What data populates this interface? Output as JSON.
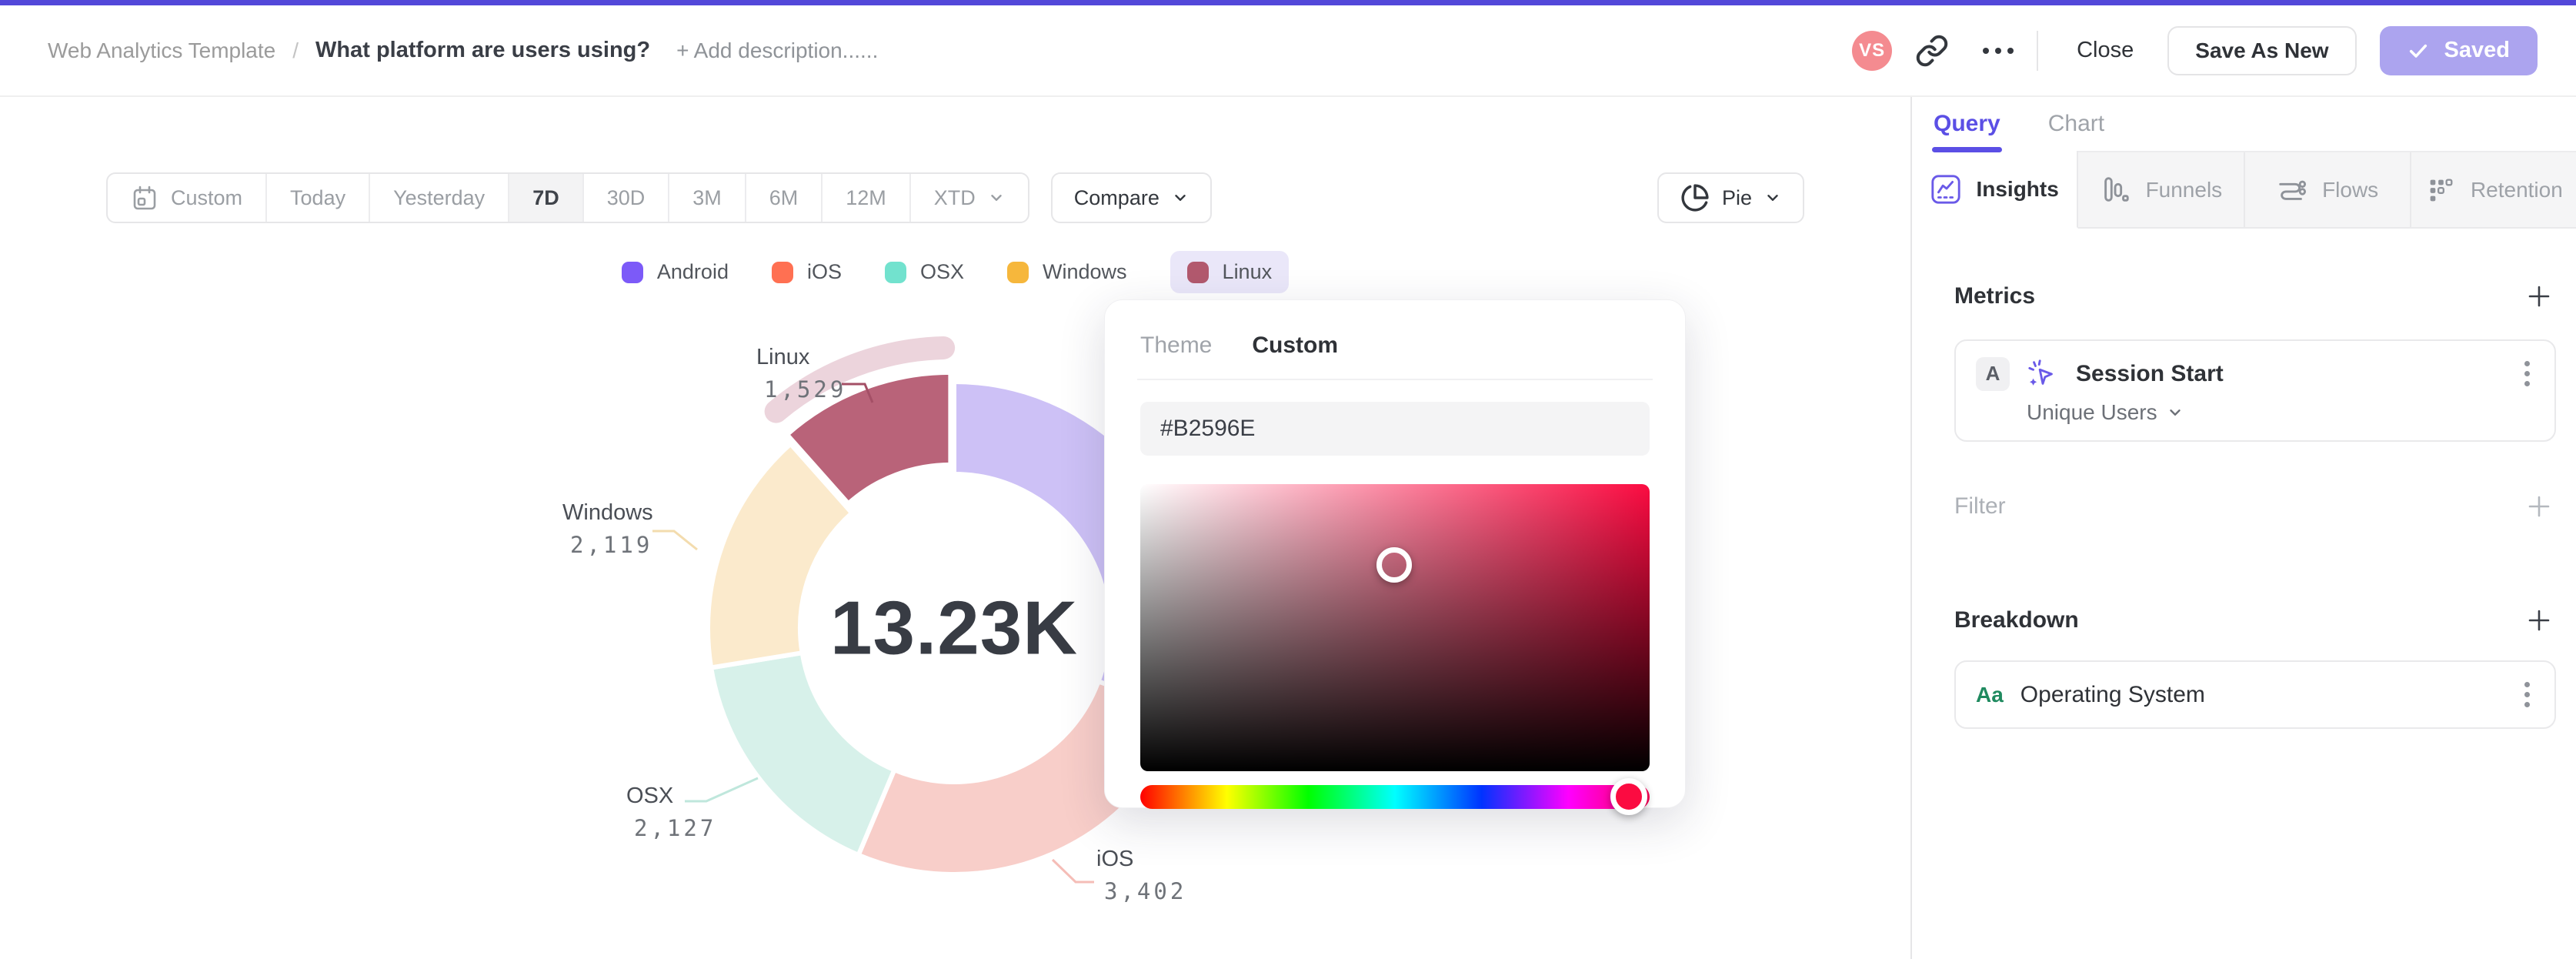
{
  "topbar": {
    "accent_color": "#5348D9"
  },
  "header": {
    "breadcrumb": "Web Analytics Template",
    "breadcrumb_sep": "/",
    "title": "What platform are users using?",
    "add_description": "+ Add description......",
    "avatar_initials": "VS",
    "close_label": "Close",
    "save_as_new_label": "Save As New",
    "saved_label": "Saved",
    "saved_button_color": "#ACA4EF"
  },
  "toolbar": {
    "ranges": [
      "Custom",
      "Today",
      "Yesterday",
      "7D",
      "30D",
      "3M",
      "6M",
      "12M",
      "XTD"
    ],
    "active_range": "7D",
    "compare_label": "Compare",
    "chart_type_label": "Pie"
  },
  "chart_data": {
    "type": "pie",
    "style": "donut",
    "center_total": "13.23K",
    "order_clockwise_from_top": [
      "Android",
      "iOS",
      "OSX",
      "Windows",
      "Linux"
    ],
    "legend_selected": "Linux",
    "series": [
      {
        "name": "Android",
        "value": 4053,
        "legend_color": "#7C5AF8",
        "slice_color": "#CDC1F6",
        "label_visible": false
      },
      {
        "name": "iOS",
        "value": 3402,
        "display_value": "3,402",
        "legend_color": "#FF7052",
        "slice_color": "#F8CEC9",
        "leader_color": "#F5BDB7",
        "label_visible": true
      },
      {
        "name": "OSX",
        "value": 2127,
        "display_value": "2,127",
        "legend_color": "#72E2CE",
        "slice_color": "#D7F1EA",
        "leader_color": "#BFE7DC",
        "label_visible": true
      },
      {
        "name": "Windows",
        "value": 2119,
        "display_value": "2,119",
        "legend_color": "#F6B73C",
        "slice_color": "#FBEACC",
        "leader_color": "#F3DCAE",
        "label_visible": true
      },
      {
        "name": "Linux",
        "value": 1529,
        "display_value": "1,529",
        "legend_color": "#B2596E",
        "slice_color": "#B96379",
        "band_color": "#ECD4DC",
        "leader_color": "#A44F66",
        "label_visible": true,
        "selected": true
      }
    ]
  },
  "color_picker": {
    "tabs": [
      "Theme",
      "Custom"
    ],
    "active_tab": "Custom",
    "hex_value": "#B2596E",
    "hue_color": "#FB0B41"
  },
  "sidebar": {
    "view_tabs": [
      {
        "label": "Query",
        "active": true
      },
      {
        "label": "Chart",
        "active": false
      }
    ],
    "insight_tabs": [
      {
        "label": "Insights",
        "active": true
      },
      {
        "label": "Funnels",
        "active": false
      },
      {
        "label": "Flows",
        "active": false
      },
      {
        "label": "Retention",
        "active": false
      }
    ],
    "metrics": {
      "heading": "Metrics",
      "rows": [
        {
          "badge": "A",
          "event": "Session Start",
          "aggregation": "Unique Users"
        }
      ]
    },
    "filter": {
      "heading": "Filter"
    },
    "breakdown": {
      "heading": "Breakdown",
      "rows": [
        {
          "badge": "Aa",
          "property": "Operating System"
        }
      ]
    }
  }
}
